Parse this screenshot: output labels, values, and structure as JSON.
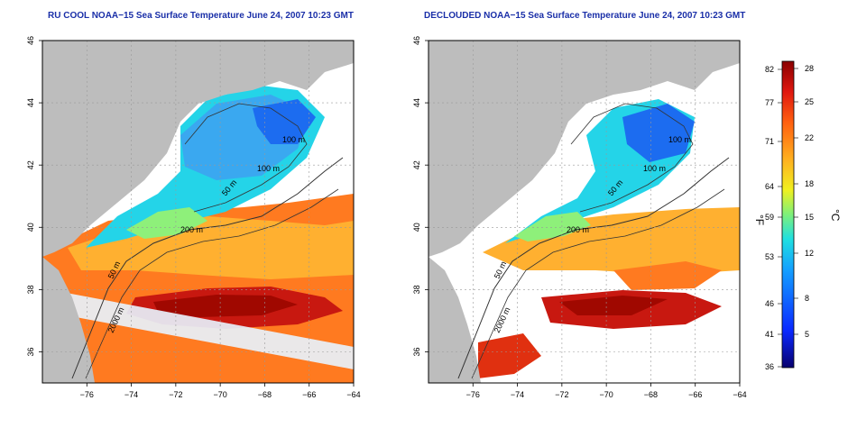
{
  "panels": [
    {
      "id": "left",
      "title": "RU COOL NOAA−15 Sea Surface Temperature June 24, 2007 10:23 GMT"
    },
    {
      "id": "right",
      "title": "DECLOUDED NOAA−15 Sea Surface Temperature June 24, 2007 10:23 GMT"
    }
  ],
  "map": {
    "lon_ticks": [
      "−76",
      "−74",
      "−72",
      "−70",
      "−68",
      "−66",
      "−64"
    ],
    "lat_ticks": [
      "46",
      "44",
      "42",
      "40",
      "38",
      "36"
    ],
    "lon_range": [
      -77,
      -63
    ],
    "lat_range": [
      35,
      46
    ],
    "land_color": "#bdbdbd",
    "contour_labels": [
      "100 m",
      "100 m",
      "50 m",
      "200 m",
      "50 m",
      "2000 m"
    ]
  },
  "colorbar": {
    "f_labels": [
      "82",
      "77",
      "71",
      "64",
      "59",
      "53",
      "46",
      "41",
      "36"
    ],
    "c_labels": [
      "28",
      "25",
      "22",
      "18",
      "15",
      "12",
      "8",
      "5"
    ],
    "unit_f": "°F",
    "unit_c": "°C",
    "colors": [
      "#08006e",
      "#0a28ff",
      "#14a0ff",
      "#20e0e0",
      "#7ef07a",
      "#f0f020",
      "#ffb020",
      "#ff6010",
      "#e01810",
      "#8a0000"
    ]
  }
}
